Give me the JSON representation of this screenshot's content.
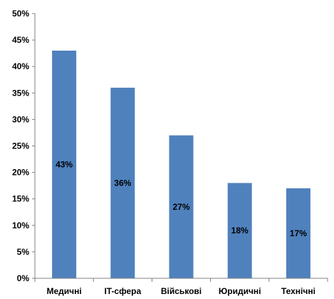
{
  "chart_data": {
    "type": "bar",
    "categories": [
      "Медичні",
      "IT-сфера",
      "Військові",
      "Юридичні",
      "Технічні"
    ],
    "values": [
      43,
      36,
      27,
      18,
      17
    ],
    "data_labels": [
      "43%",
      "36%",
      "27%",
      "18%",
      "17%"
    ],
    "y_ticks": [
      "0%",
      "5%",
      "10%",
      "15%",
      "20%",
      "25%",
      "30%",
      "35%",
      "40%",
      "45%",
      "50%"
    ],
    "ylim": [
      0,
      50
    ],
    "title": "",
    "xlabel": "",
    "ylabel": "",
    "grid": false,
    "bar_color": "#4F81BD"
  }
}
